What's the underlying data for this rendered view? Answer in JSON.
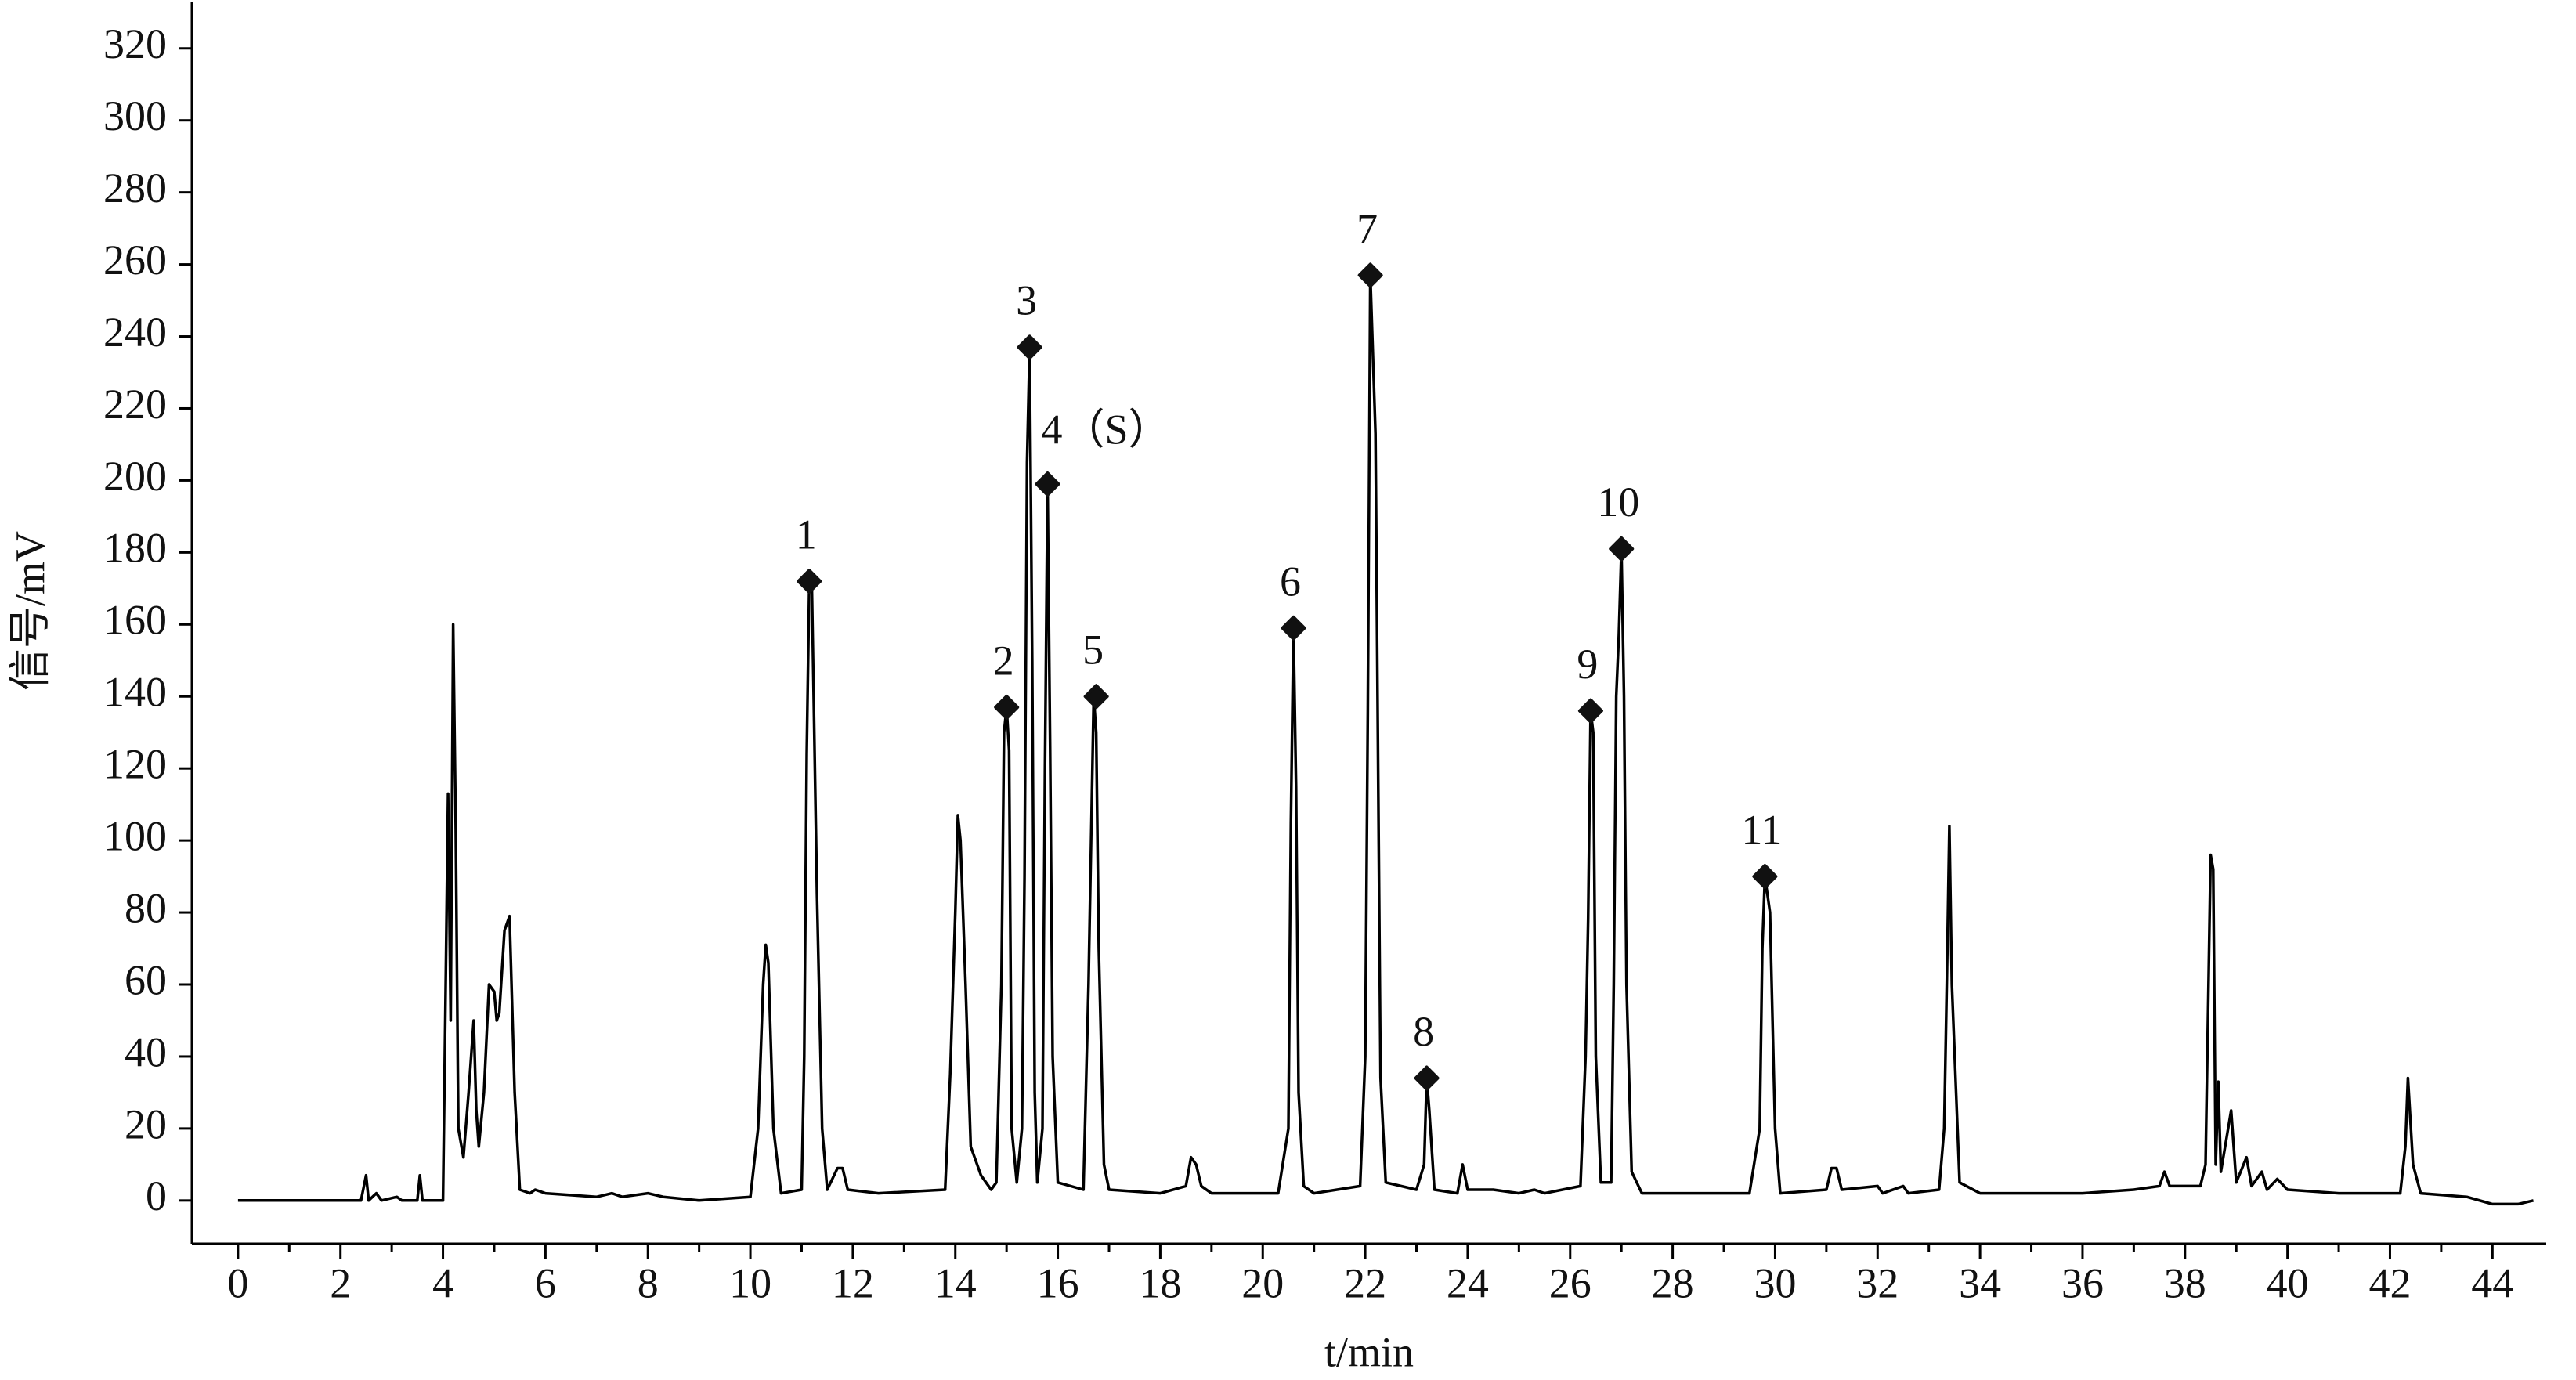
{
  "chart_data": {
    "type": "line",
    "xlabel": "t/min",
    "ylabel": "信号/mV",
    "color": "#000000",
    "xlim": [
      -0.9,
      45.05
    ],
    "ylim": [
      -12,
      333
    ],
    "xticks": [
      0,
      2,
      4,
      6,
      8,
      10,
      12,
      14,
      16,
      18,
      20,
      22,
      24,
      26,
      28,
      30,
      32,
      34,
      36,
      38,
      40,
      42,
      44
    ],
    "xminorticks": [
      1,
      3,
      5,
      7,
      9,
      11,
      13,
      15,
      17,
      19,
      21,
      23,
      25,
      27,
      29,
      31,
      33,
      35,
      37,
      39,
      41,
      43
    ],
    "yticks": [
      0,
      20,
      40,
      60,
      80,
      100,
      120,
      140,
      160,
      180,
      200,
      220,
      240,
      260,
      280,
      300,
      320
    ],
    "grid": false,
    "x": [
      0,
      2.4,
      2.5,
      2.55,
      2.7,
      2.8,
      3.1,
      3.2,
      3.5,
      3.55,
      3.6,
      4.0,
      4.1,
      4.15,
      4.2,
      4.25,
      4.3,
      4.4,
      4.5,
      4.6,
      4.65,
      4.7,
      4.8,
      4.9,
      5.0,
      5.05,
      5.1,
      5.2,
      5.3,
      5.4,
      5.5,
      5.7,
      5.8,
      6.0,
      7,
      7.3,
      7.5,
      8,
      8.3,
      9,
      10,
      10.15,
      10.25,
      10.3,
      10.35,
      10.45,
      10.6,
      11,
      11.05,
      11.1,
      11.15,
      11.2,
      11.3,
      11.4,
      11.5,
      11.7,
      11.8,
      11.9,
      12.5,
      13.8,
      13.9,
      14.0,
      14.05,
      14.1,
      14.2,
      14.3,
      14.5,
      14.7,
      14.8,
      14.9,
      14.95,
      15.0,
      15.05,
      15.1,
      15.2,
      15.3,
      15.35,
      15.4,
      15.45,
      15.5,
      15.55,
      15.6,
      15.7,
      15.75,
      15.8,
      15.85,
      15.9,
      16.0,
      16.5,
      16.6,
      16.7,
      16.75,
      16.8,
      16.9,
      17.0,
      18.0,
      18.5,
      18.6,
      18.7,
      18.8,
      19,
      20,
      20.3,
      20.5,
      20.55,
      20.6,
      20.65,
      20.7,
      20.8,
      21,
      21.9,
      22.0,
      22.05,
      22.1,
      22.2,
      22.3,
      22.4,
      23.0,
      23.15,
      23.2,
      23.25,
      23.35,
      23.8,
      23.9,
      24.0,
      24.5,
      25,
      25.3,
      25.5,
      26.2,
      26.3,
      26.35,
      26.4,
      26.45,
      26.5,
      26.6,
      26.8,
      26.85,
      26.9,
      26.95,
      27.0,
      27.05,
      27.1,
      27.2,
      27.4,
      28,
      29.5,
      29.7,
      29.75,
      29.8,
      29.9,
      30.0,
      30.1,
      31,
      31.1,
      31.2,
      31.3,
      32,
      32.1,
      32.5,
      32.6,
      33.2,
      33.3,
      33.35,
      33.4,
      33.45,
      33.6,
      34,
      36,
      37,
      37.5,
      37.6,
      37.7,
      38.3,
      38.4,
      38.5,
      38.55,
      38.6,
      38.65,
      38.7,
      38.9,
      39.0,
      39.2,
      39.3,
      39.5,
      39.6,
      39.8,
      40,
      41,
      42.2,
      42.3,
      42.35,
      42.45,
      42.6,
      43.5,
      44.0,
      44.5,
      44.8
    ],
    "values": [
      0,
      0,
      7,
      0,
      2,
      0,
      1,
      0,
      0,
      7,
      0,
      0,
      113,
      50,
      160,
      103,
      20,
      12,
      30,
      50,
      25,
      15,
      30,
      60,
      58,
      50,
      52,
      75,
      79,
      30,
      3,
      2,
      3,
      2,
      1,
      2,
      1,
      2,
      1,
      0,
      1,
      20,
      60,
      71,
      66,
      20,
      2,
      3,
      40,
      124,
      172,
      170,
      85,
      20,
      3,
      9,
      9,
      3,
      2,
      3,
      35,
      80,
      107,
      100,
      60,
      15,
      7,
      3,
      5,
      60,
      130,
      137,
      125,
      20,
      5,
      20,
      90,
      205,
      237,
      150,
      30,
      5,
      20,
      120,
      199,
      125,
      40,
      5,
      3,
      60,
      140,
      130,
      70,
      10,
      3,
      2,
      4,
      12,
      10,
      4,
      2,
      2,
      2,
      20,
      105,
      159,
      115,
      30,
      4,
      2,
      4,
      40,
      136,
      257,
      213,
      34,
      5,
      3,
      10,
      34,
      25,
      3,
      2,
      10,
      3,
      3,
      2,
      3,
      2,
      4,
      40,
      78,
      136,
      130,
      40,
      5,
      5,
      60,
      140,
      157,
      181,
      140,
      60,
      8,
      2,
      2,
      2,
      20,
      70,
      90,
      80,
      20,
      2,
      3,
      9,
      9,
      3,
      4,
      2,
      4,
      2,
      3,
      20,
      60,
      104,
      60,
      5,
      2,
      2,
      3,
      4,
      8,
      4,
      4,
      10,
      96,
      92,
      10,
      33,
      8,
      25,
      5,
      12,
      4,
      8,
      3,
      6,
      3,
      2,
      2,
      15,
      34,
      10,
      2,
      1,
      -1,
      -1,
      0
    ],
    "annotations": [
      {
        "text": "1",
        "x": 11.15,
        "y": 172
      },
      {
        "text": "2",
        "x": 15.0,
        "y": 137
      },
      {
        "text": "3",
        "x": 15.45,
        "y": 237
      },
      {
        "text": "4（S）",
        "x": 15.8,
        "y": 199
      },
      {
        "text": "5",
        "x": 16.75,
        "y": 140
      },
      {
        "text": "6",
        "x": 20.6,
        "y": 159
      },
      {
        "text": "7",
        "x": 22.1,
        "y": 257
      },
      {
        "text": "8",
        "x": 23.2,
        "y": 34
      },
      {
        "text": "9",
        "x": 26.4,
        "y": 136
      },
      {
        "text": "10",
        "x": 27.0,
        "y": 181
      },
      {
        "text": "11",
        "x": 29.8,
        "y": 90
      }
    ]
  }
}
